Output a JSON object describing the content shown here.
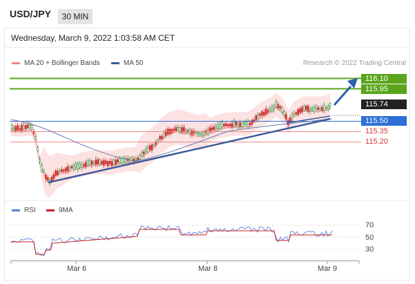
{
  "header": {
    "symbol": "USD/JPY",
    "timeframe": "30 MIN"
  },
  "datetime": "Wednesday, March 9, 2022 1:03:58 AM CET",
  "legend": {
    "ma20": "MA 20 + Bollinger Bands",
    "ma50": "MA 50",
    "research": "Research © 2022 Trading Central"
  },
  "levels": {
    "r1": "116.10",
    "r2": "115.95",
    "last": "115.74",
    "pivot": "115.50",
    "s1": "115.35",
    "s2": "115.20"
  },
  "indicator_legend": {
    "rsi": "RSI",
    "ma9": "9MA"
  },
  "rsi_levels": {
    "upper": "70",
    "mid": "50",
    "lower": "30"
  },
  "xaxis": {
    "d1": "Mar 6",
    "d2": "Mar 8",
    "d3": "Mar 9"
  },
  "colors": {
    "green": "#5aa51c",
    "blue": "#2d6fd6",
    "red": "#e05050",
    "bull": "#2a8a3a",
    "bear": "#d03030",
    "ma50": "#3c5a9a"
  }
}
